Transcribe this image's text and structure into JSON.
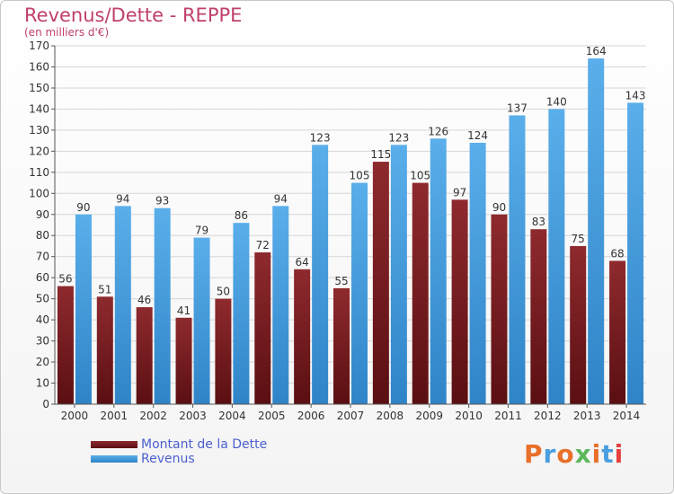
{
  "header": {
    "title": "Revenus/Dette - REPPE",
    "subtitle": "(en milliers d'€)"
  },
  "logo": {
    "text": "Proxiti",
    "colors": [
      "#e8702a",
      "#4a9fe0",
      "#e8702a",
      "#5cb85c",
      "#e8702a",
      "#4a9fe0",
      "#e84040"
    ]
  },
  "colors": {
    "dette": "#7a1e22",
    "revenus": "#3d96dc"
  },
  "chart_data": {
    "type": "bar",
    "title": "Revenus/Dette - REPPE",
    "subtitle": "(en milliers d'€)",
    "categories": [
      "2000",
      "2001",
      "2002",
      "2003",
      "2004",
      "2005",
      "2006",
      "2007",
      "2008",
      "2009",
      "2010",
      "2011",
      "2012",
      "2013",
      "2014"
    ],
    "series": [
      {
        "name": "Montant de la Dette",
        "values": [
          56,
          51,
          46,
          41,
          50,
          72,
          64,
          55,
          115,
          105,
          97,
          90,
          83,
          75,
          68
        ]
      },
      {
        "name": "Revenus",
        "values": [
          90,
          94,
          93,
          79,
          86,
          94,
          123,
          105,
          123,
          126,
          124,
          137,
          140,
          164,
          143
        ]
      }
    ],
    "ylim": [
      0,
      170
    ],
    "yticks": [
      0,
      10,
      20,
      30,
      40,
      50,
      60,
      70,
      80,
      90,
      100,
      110,
      120,
      130,
      140,
      150,
      160,
      170
    ],
    "grid": true,
    "legend_position": "bottom-left"
  }
}
